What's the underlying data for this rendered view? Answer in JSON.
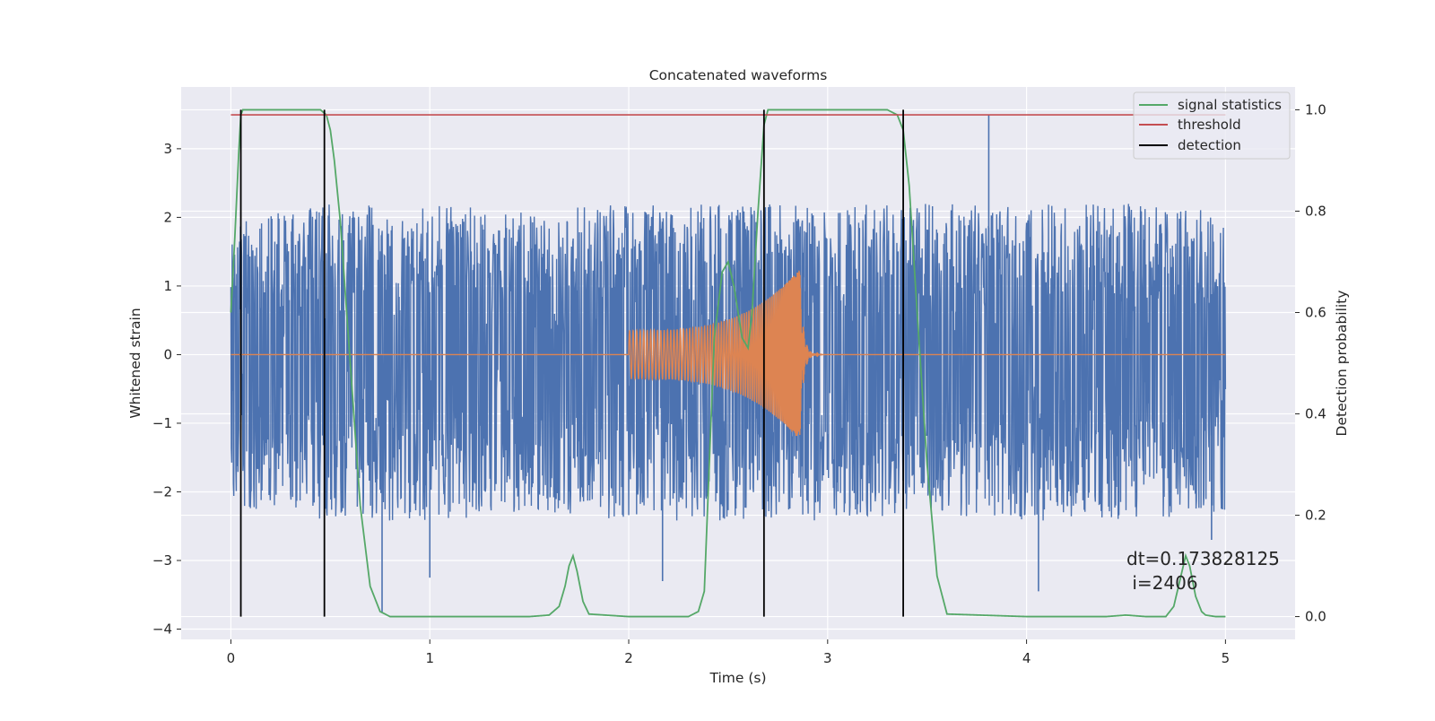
{
  "chart_data": {
    "type": "line",
    "title": "Concatenated waveforms",
    "xlabel": "Time (s)",
    "ylabel_left": "Whitened strain",
    "ylabel_right": "Detection probability",
    "xlim": [
      -0.25,
      5.35
    ],
    "ylim_left": [
      -4.15,
      3.9
    ],
    "ylim_right": [
      -0.045,
      1.045
    ],
    "x_ticks": [
      0,
      1,
      2,
      3,
      4,
      5
    ],
    "y_ticks_left": [
      -4,
      -3,
      -2,
      -1,
      0,
      1,
      2,
      3
    ],
    "y_ticks_right": [
      0.0,
      0.2,
      0.4,
      0.6,
      0.8,
      1.0
    ],
    "grid": true,
    "legend_position": "upper right",
    "legend": [
      "signal statistics",
      "threshold",
      "detection"
    ],
    "colors": {
      "noise": "#4c72b0",
      "waveform": "#dd8452",
      "signal_statistics": "#55a868",
      "threshold": "#c44e52",
      "detection": "#000000",
      "axes_bg": "#eaeaf2",
      "grid": "#ffffff"
    },
    "series": [
      {
        "name": "signal statistics",
        "axis": "right",
        "x": [
          0,
          0.02,
          0.04,
          0.05,
          0.06,
          0.08,
          0.1,
          0.2,
          0.3,
          0.4,
          0.45,
          0.48,
          0.5,
          0.52,
          0.55,
          0.6,
          0.65,
          0.7,
          0.75,
          0.8,
          1.0,
          1.5,
          1.6,
          1.65,
          1.68,
          1.7,
          1.72,
          1.74,
          1.77,
          1.8,
          2.0,
          2.3,
          2.35,
          2.38,
          2.4,
          2.43,
          2.47,
          2.5,
          2.53,
          2.57,
          2.6,
          2.62,
          2.65,
          2.68,
          2.7,
          2.75,
          3.0,
          3.3,
          3.35,
          3.38,
          3.41,
          3.45,
          3.5,
          3.55,
          3.6,
          4.0,
          4.4,
          4.5,
          4.6,
          4.7,
          4.74,
          4.77,
          4.8,
          4.82,
          4.85,
          4.88,
          4.9,
          4.95,
          5.0
        ],
        "values": [
          0.6,
          0.75,
          0.92,
          0.99,
          1.0,
          1.0,
          1.0,
          1.0,
          1.0,
          1.0,
          1.0,
          0.99,
          0.96,
          0.9,
          0.78,
          0.5,
          0.22,
          0.06,
          0.01,
          0.0,
          0.0,
          0.0,
          0.003,
          0.02,
          0.06,
          0.1,
          0.12,
          0.09,
          0.03,
          0.005,
          0.0,
          0.0,
          0.01,
          0.05,
          0.25,
          0.55,
          0.68,
          0.7,
          0.65,
          0.55,
          0.53,
          0.6,
          0.8,
          0.97,
          1.0,
          1.0,
          1.0,
          1.0,
          0.99,
          0.96,
          0.85,
          0.6,
          0.3,
          0.08,
          0.005,
          0.0,
          0.0,
          0.003,
          0.0,
          0.0,
          0.02,
          0.07,
          0.12,
          0.1,
          0.04,
          0.01,
          0.003,
          0.0,
          0.0
        ]
      },
      {
        "name": "threshold",
        "axis": "right",
        "x": [
          0,
          5
        ],
        "values": [
          0.99,
          0.99
        ]
      },
      {
        "name": "detection",
        "axis": "right",
        "type": "vlines",
        "x": [
          0.05,
          0.47,
          2.68,
          3.38
        ],
        "ymin": 0.0,
        "ymax": 1.0
      }
    ],
    "noise_envelope": {
      "axis": "left",
      "x": [
        0,
        0.5,
        1,
        1.5,
        2,
        2.5,
        3,
        3.5,
        4,
        4.5,
        5
      ],
      "upper": [
        1.8,
        2.0,
        2.0,
        1.9,
        2.0,
        2.0,
        2.0,
        2.0,
        2.0,
        2.0,
        1.9
      ],
      "lower": [
        -2.0,
        -2.2,
        -2.2,
        -2.1,
        -2.2,
        -2.2,
        -2.2,
        -2.1,
        -2.2,
        -2.2,
        -2.1
      ],
      "peaks": [
        {
          "x": 0.76,
          "y": -3.75
        },
        {
          "x": 1.0,
          "y": -3.25
        },
        {
          "x": 2.17,
          "y": -3.3
        },
        {
          "x": 3.81,
          "y": 3.5
        },
        {
          "x": 4.06,
          "y": -3.45
        },
        {
          "x": 4.93,
          "y": -2.7
        }
      ]
    },
    "waveform": {
      "axis": "left",
      "start": 2.0,
      "merger": 2.86,
      "end": 3.0,
      "start_amplitude": 0.35,
      "peak_amplitude": 1.25
    },
    "annotations": [
      "dt=0.173828125",
      " i=2406"
    ]
  }
}
